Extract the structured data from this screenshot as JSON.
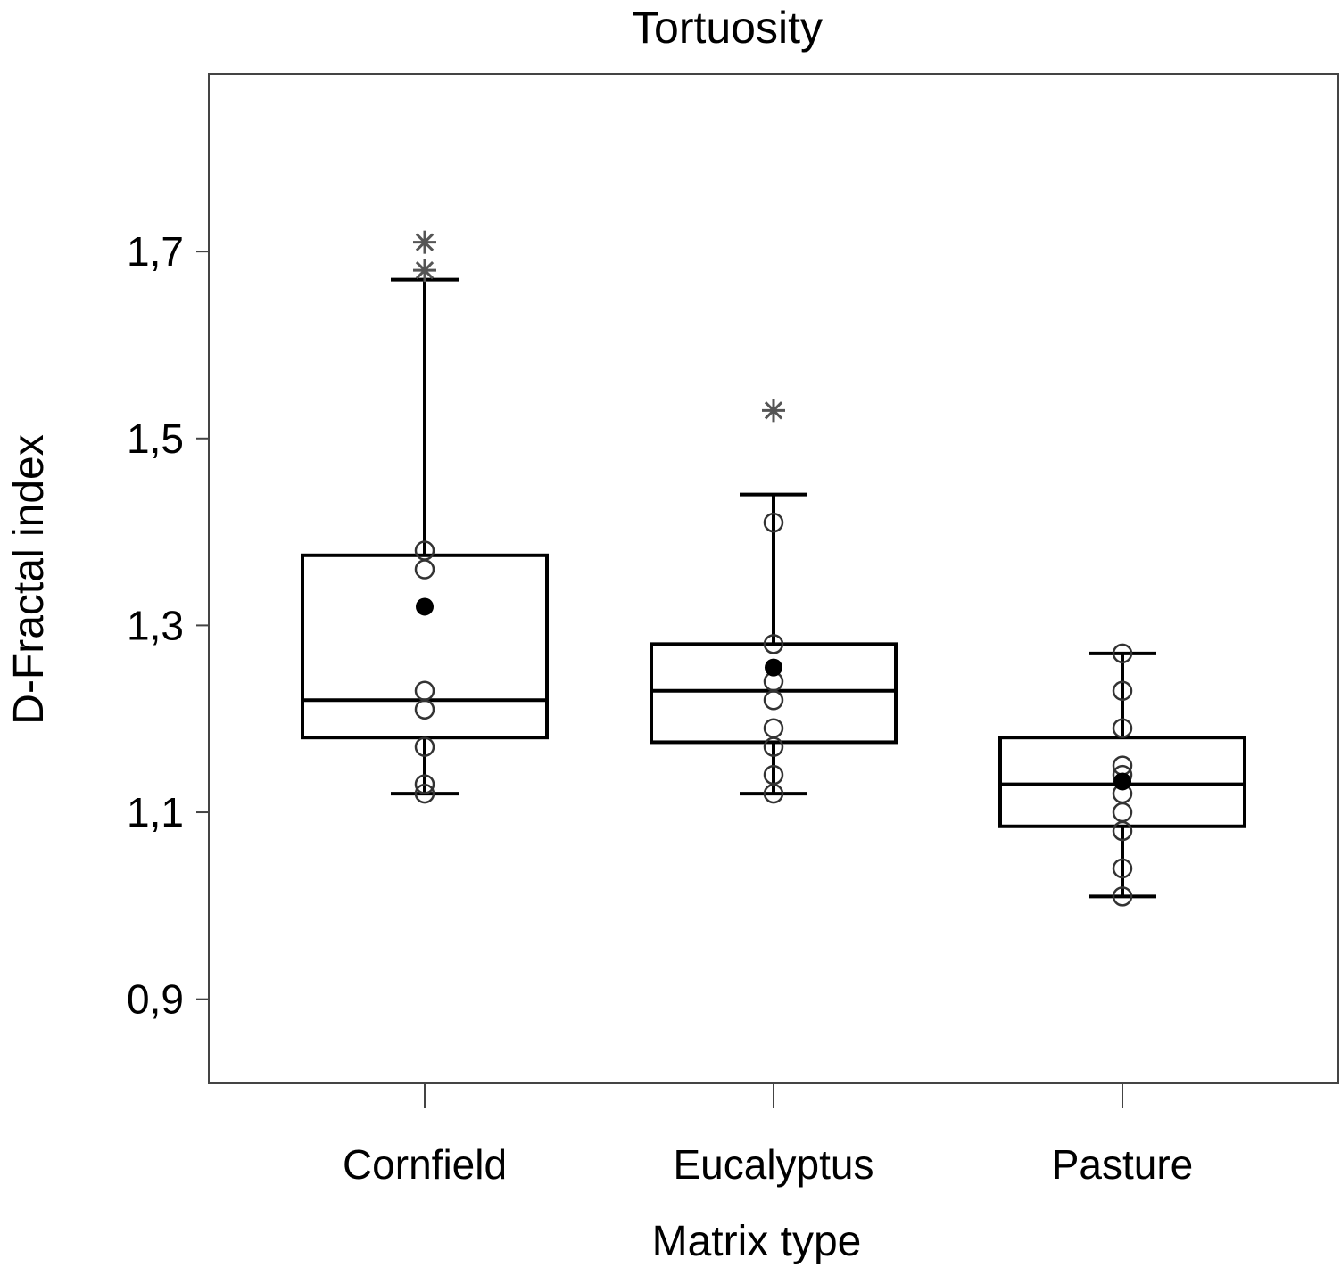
{
  "chart_data": {
    "type": "box",
    "title": "Tortuosity",
    "xlabel": "Matrix type",
    "ylabel": "D-Fractal index",
    "ylim": [
      0.81,
      1.89
    ],
    "yticks": [
      0.9,
      1.1,
      1.3,
      1.5,
      1.7
    ],
    "ytick_labels": [
      "0,9",
      "1,1",
      "1,3",
      "1,5",
      "1,7"
    ],
    "categories": [
      "Cornfield",
      "Eucalyptus",
      "Pasture"
    ],
    "grid": false,
    "legend": "none",
    "boxes": [
      {
        "category": "Cornfield",
        "whisker_low": 1.12,
        "q1": 1.18,
        "median": 1.22,
        "q3": 1.375,
        "whisker_high": 1.67,
        "mean": 1.32,
        "points": [
          1.38,
          1.36,
          1.23,
          1.21,
          1.17,
          1.13,
          1.12
        ],
        "outliers": [
          1.71,
          1.68
        ]
      },
      {
        "category": "Eucalyptus",
        "whisker_low": 1.12,
        "q1": 1.175,
        "median": 1.23,
        "q3": 1.28,
        "whisker_high": 1.44,
        "mean": 1.255,
        "points": [
          1.41,
          1.28,
          1.24,
          1.22,
          1.19,
          1.17,
          1.14,
          1.12
        ],
        "outliers": [
          1.53
        ]
      },
      {
        "category": "Pasture",
        "whisker_low": 1.01,
        "q1": 1.085,
        "median": 1.13,
        "q3": 1.18,
        "whisker_high": 1.27,
        "mean": 1.133,
        "points": [
          1.27,
          1.23,
          1.19,
          1.15,
          1.14,
          1.12,
          1.1,
          1.08,
          1.04,
          1.01
        ],
        "outliers": []
      }
    ],
    "colors": {
      "line": "#000000",
      "frame": "#444444",
      "mean_marker": "#000000",
      "outlier": "#555555"
    }
  }
}
